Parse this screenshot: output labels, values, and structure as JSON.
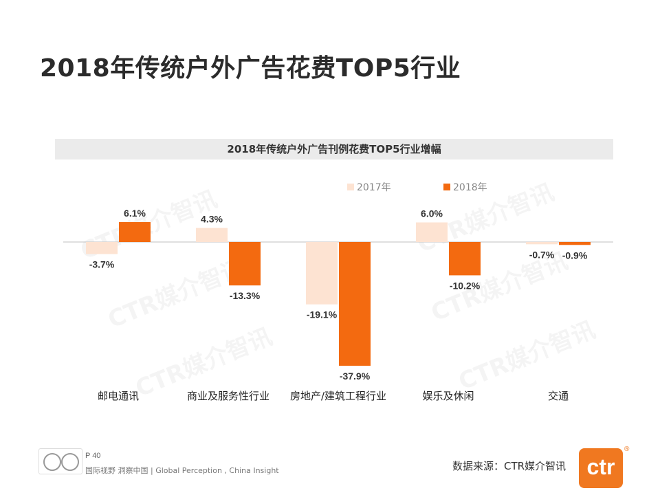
{
  "page": {
    "title": "2018年传统户外广告花费TOP5行业"
  },
  "watermark_text": "CTR媒介智讯",
  "chart_data": {
    "type": "bar",
    "title": "2018年传统户外广告刊例花费TOP5行业增幅",
    "categories": [
      "邮电通讯",
      "商业及服务性行业",
      "房地产/建筑工程行业",
      "娱乐及休闲",
      "交通"
    ],
    "series": [
      {
        "name": "2017年",
        "color": "#fde3d2",
        "values": [
          -3.7,
          4.3,
          -19.1,
          6.0,
          -0.7
        ],
        "labels": [
          "-3.7%",
          "4.3%",
          "-19.1%",
          "6.0%",
          "-0.7%"
        ]
      },
      {
        "name": "2018年",
        "color": "#f36a10",
        "values": [
          6.1,
          -13.3,
          -37.9,
          -10.2,
          -0.9
        ],
        "labels": [
          "6.1%",
          "-13.3%",
          "-37.9%",
          "-10.2%",
          "-0.9%"
        ]
      }
    ],
    "ylim": [
      -40,
      10
    ],
    "xlabel": "",
    "ylabel": "",
    "legend_position": "top-center",
    "grid": false
  },
  "footer": {
    "page_number": "P 40",
    "slogan": "国际视野  洞察中国 |  Global Perception , China Insight",
    "source": "数据来源：CTR媒介智讯",
    "logo_text": "ctr",
    "registered_mark": "®"
  }
}
